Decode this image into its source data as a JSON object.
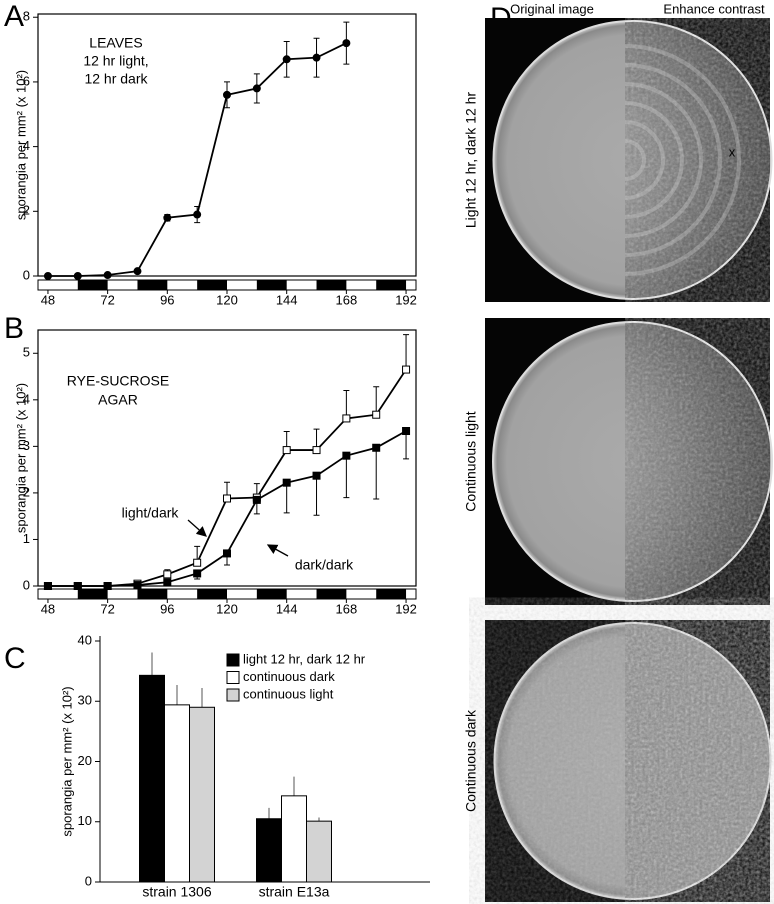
{
  "chart_data": [
    {
      "type": "line",
      "panel": "A",
      "annotation": [
        "LEAVES",
        "12 hr light,",
        "12 hr dark"
      ],
      "y_label": "sporangia per mm² (x 10²)",
      "x": [
        48,
        60,
        72,
        84,
        96,
        108,
        120,
        132,
        144,
        156,
        168
      ],
      "series": [
        {
          "color": "#000000",
          "marker": "circle",
          "marker_fill": "#000000",
          "error_direction": "both",
          "values": [
            0,
            0,
            0.03,
            0.15,
            1.8,
            1.9,
            5.6,
            5.8,
            6.7,
            6.75,
            7.2
          ],
          "errors": [
            null,
            null,
            null,
            null,
            0.1,
            0.25,
            0.4,
            0.45,
            0.55,
            0.6,
            0.65
          ]
        }
      ],
      "xlim": [
        44,
        196
      ],
      "ylim": [
        0,
        8.1
      ],
      "xticks": [
        48,
        72,
        96,
        120,
        144,
        168,
        192
      ],
      "yticks": [
        0,
        2,
        4,
        6,
        8
      ],
      "dark_intervals": [
        [
          60,
          72
        ],
        [
          84,
          96
        ],
        [
          108,
          120
        ],
        [
          132,
          144
        ],
        [
          156,
          168
        ],
        [
          180,
          192
        ]
      ]
    },
    {
      "type": "line",
      "panel": "B",
      "annotation": [
        "RYE-SUCROSE",
        "AGAR"
      ],
      "y_label": "sporangia per mm² (x 10²)",
      "x": [
        48,
        60,
        72,
        84,
        96,
        108,
        120,
        132,
        144,
        156,
        168,
        180,
        192
      ],
      "series": [
        {
          "name": "light/dark",
          "color": "#000000",
          "marker": "square",
          "marker_fill": "#ffffff",
          "error_direction": "up",
          "values": [
            0,
            0,
            0,
            0.05,
            0.25,
            0.5,
            1.88,
            1.9,
            2.92,
            2.92,
            3.6,
            3.68,
            4.65
          ],
          "errors": [
            null,
            null,
            null,
            null,
            0.1,
            0.35,
            0.35,
            0.3,
            0.4,
            0.45,
            0.6,
            0.6,
            0.75
          ]
        },
        {
          "name": "dark/dark",
          "color": "#000000",
          "marker": "square",
          "marker_fill": "#000000",
          "error_direction": "down",
          "values": [
            0,
            0,
            0,
            0.02,
            0.08,
            0.27,
            0.7,
            1.85,
            2.22,
            2.37,
            2.8,
            2.97,
            3.33
          ],
          "errors": [
            null,
            null,
            null,
            null,
            null,
            0.12,
            0.25,
            0.3,
            0.65,
            0.85,
            0.9,
            1.1,
            0.6
          ]
        }
      ],
      "xlim": [
        44,
        196
      ],
      "ylim": [
        0,
        5.5
      ],
      "xticks": [
        48,
        72,
        96,
        120,
        144,
        168,
        192
      ],
      "yticks": [
        0,
        1,
        2,
        3,
        4,
        5
      ],
      "dark_intervals": [
        [
          60,
          72
        ],
        [
          84,
          96
        ],
        [
          108,
          120
        ],
        [
          132,
          144
        ],
        [
          156,
          168
        ],
        [
          180,
          192
        ]
      ]
    },
    {
      "type": "bar",
      "panel": "C",
      "y_label": "sporangia per mm² (x 10²)",
      "categories": [
        "strain 1306",
        "strain E13a"
      ],
      "series": [
        {
          "name": "light 12 hr, dark 12 hr",
          "color": "#000000",
          "values": [
            34.3,
            10.5
          ],
          "errors": [
            3.8,
            1.8
          ]
        },
        {
          "name": "continuous dark",
          "color": "#ffffff",
          "values": [
            29.4,
            14.3
          ],
          "errors": [
            3.3,
            3.2
          ]
        },
        {
          "name": "continuous light",
          "color": "#d3d3d3",
          "values": [
            29,
            10.1
          ],
          "errors": [
            3.2,
            0.6
          ]
        }
      ],
      "ylim": [
        0,
        40
      ],
      "yticks": [
        0,
        10,
        20,
        30,
        40
      ]
    }
  ],
  "panel_d": {
    "panel": "D",
    "columns": [
      "Original image",
      "Enhance contrast"
    ],
    "rows": [
      "Light 12 hr, dark 12 hr",
      "Continuous light",
      "Continuous dark"
    ],
    "mark": "x"
  }
}
